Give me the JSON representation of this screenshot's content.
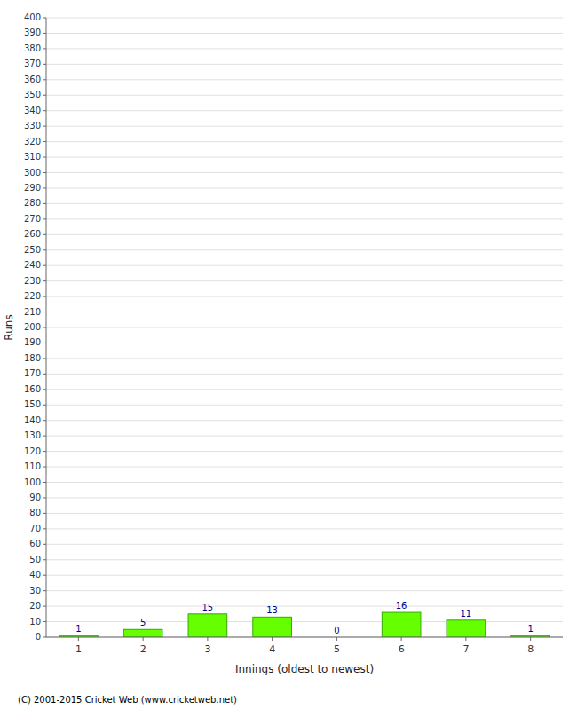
{
  "chart_data": {
    "type": "bar",
    "categories": [
      "1",
      "2",
      "3",
      "4",
      "5",
      "6",
      "7",
      "8"
    ],
    "values": [
      1,
      5,
      15,
      13,
      0,
      16,
      11,
      1
    ],
    "color": "#66ff00",
    "xlabel": "Innings (oldest to newest)",
    "ylabel": "Runs",
    "ylim": [
      0,
      400
    ],
    "yticks": [
      0,
      10,
      20,
      30,
      40,
      50,
      60,
      70,
      80,
      90,
      100,
      110,
      120,
      130,
      140,
      150,
      160,
      170,
      180,
      190,
      200,
      210,
      220,
      230,
      240,
      250,
      260,
      270,
      280,
      290,
      300,
      310,
      320,
      330,
      340,
      350,
      360,
      370,
      380,
      390,
      400
    ],
    "grid": true,
    "data_labels": true,
    "annotations": [
      "(C) 2001-2015 Cricket Web (www.cricketweb.net)"
    ]
  }
}
